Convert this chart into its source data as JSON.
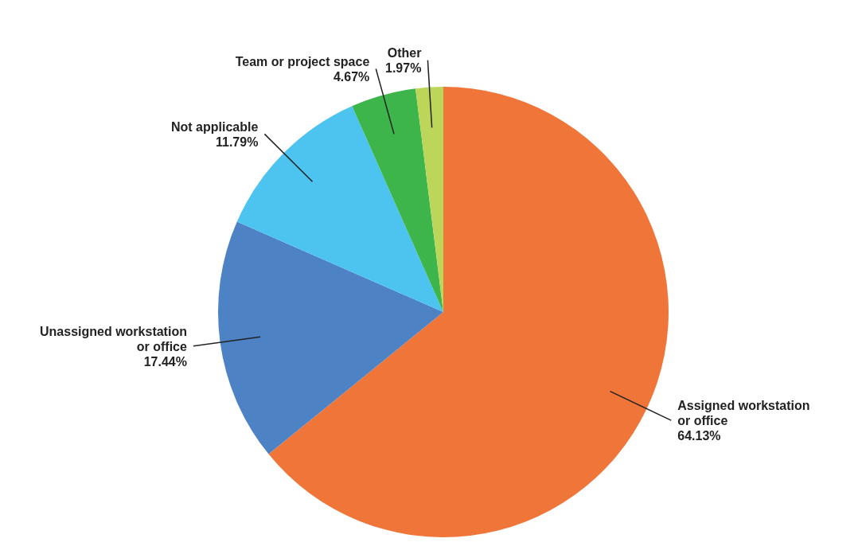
{
  "chart_data": {
    "type": "pie",
    "categories": [
      "Assigned workstation or office",
      "Unassigned workstation or office",
      "Not applicable",
      "Team or project space",
      "Other"
    ],
    "values": [
      64.13,
      17.44,
      11.79,
      4.67,
      1.97
    ],
    "value_labels": [
      "64.13%",
      "17.44%",
      "11.79%",
      "4.67%",
      "1.97%"
    ],
    "colors": [
      "#f07539",
      "#4d82c4",
      "#4dc3f0",
      "#3db54a",
      "#bcd65a"
    ]
  }
}
